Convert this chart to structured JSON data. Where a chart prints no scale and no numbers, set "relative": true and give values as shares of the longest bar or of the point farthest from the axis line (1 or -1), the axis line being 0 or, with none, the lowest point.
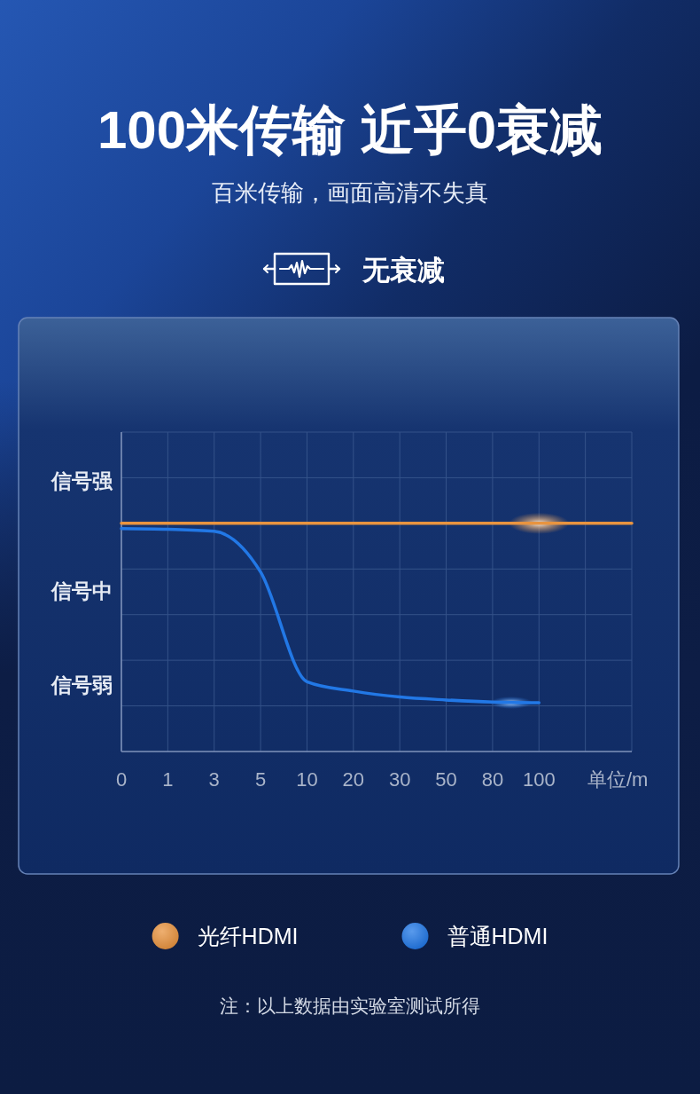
{
  "chart_data": {
    "type": "line",
    "title": "100米传输 近乎0衰减",
    "subtitle": "百米传输，画面高清不失真",
    "xlabel": "单位/m",
    "categories": [
      "0",
      "1",
      "3",
      "5",
      "10",
      "20",
      "30",
      "50",
      "80",
      "100",
      null,
      null
    ],
    "relative": true,
    "series": [
      {
        "name": "光纤HDMI",
        "color": "#e89440",
        "values": [
          1,
          1,
          1,
          1,
          1,
          1,
          1,
          1,
          1,
          1,
          1,
          1
        ]
      },
      {
        "name": "普通HDMI",
        "color": "#2278e6",
        "values": [
          0.977,
          0.974,
          0.965,
          0.787,
          0.306,
          0.265,
          0.239,
          0.226,
          0.217,
          0.214,
          null,
          null
        ]
      }
    ],
    "annotations": [
      "无衰减",
      "信号强",
      "信号中",
      "信号弱",
      "注：以上数据由实验室测试所得"
    ],
    "grid": true,
    "legend": "bottom"
  }
}
